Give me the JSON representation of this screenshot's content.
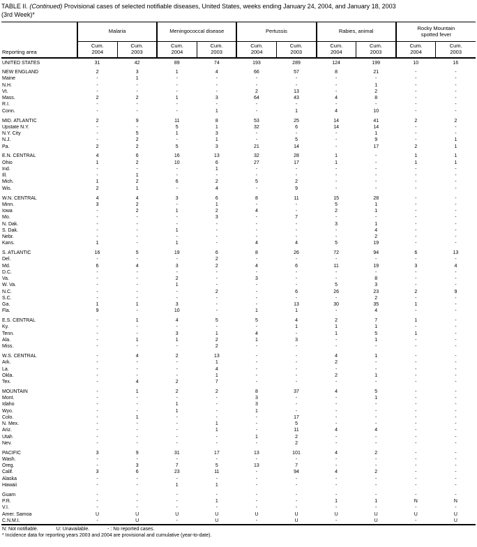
{
  "colors": {
    "text": "#000000",
    "background": "#ffffff",
    "rule": "#000000"
  },
  "title": {
    "prefix": "TABLE II. ",
    "continued": "(Continued)",
    "rest": " Provisional cases of selected notifiable diseases, United States, weeks ending January 24, 2004, and January 18, 2003",
    "line2": "(3rd Week)*"
  },
  "table": {
    "reporting_area_label": "Reporting area",
    "groups": [
      {
        "id": "malaria",
        "label": "Malaria"
      },
      {
        "id": "meningococcal-disease",
        "label": "Meningococcal disease"
      },
      {
        "id": "pertussis",
        "label": "Pertussis"
      },
      {
        "id": "rabies-animal",
        "label": "Rabies, animal"
      },
      {
        "id": "rocky-mountain-spotted-fever",
        "label": "Rocky Mountain spotted fever"
      }
    ],
    "sub_columns": [
      {
        "line1": "Cum.",
        "line2": "2004"
      },
      {
        "line1": "Cum.",
        "line2": "2003"
      },
      {
        "line1": "Cum.",
        "line2": "2004"
      },
      {
        "line1": "Cum.",
        "line2": "2003"
      },
      {
        "line1": "Cum.",
        "line2": "2004"
      },
      {
        "line1": "Cum.",
        "line2": "2003"
      },
      {
        "line1": "Cum.",
        "line2": "2004"
      },
      {
        "line1": "Cum.",
        "line2": "2003"
      },
      {
        "line1": "Cum.",
        "line2": "2004"
      },
      {
        "line1": "Cum.",
        "line2": "2003"
      }
    ],
    "rows": [
      {
        "label": "UNITED STATES",
        "type": "total",
        "gap": false,
        "values": [
          "31",
          "42",
          "89",
          "74",
          "193",
          "289",
          "124",
          "199",
          "10",
          "16"
        ]
      },
      {
        "label": "NEW ENGLAND",
        "type": "total",
        "gap": true,
        "values": [
          "2",
          "3",
          "1",
          "4",
          "66",
          "57",
          "8",
          "21",
          "-",
          "-"
        ]
      },
      {
        "label": "Maine",
        "type": "state",
        "gap": false,
        "values": [
          "-",
          "1",
          "-",
          "-",
          "-",
          "-",
          "-",
          "-",
          "-",
          "-"
        ]
      },
      {
        "label": "N.H.",
        "type": "state",
        "gap": false,
        "values": [
          "-",
          "-",
          "-",
          "-",
          "-",
          "-",
          "-",
          "1",
          "-",
          "-"
        ]
      },
      {
        "label": "Vt.",
        "type": "state",
        "gap": false,
        "values": [
          "-",
          "-",
          "-",
          "-",
          "2",
          "13",
          "-",
          "2",
          "-",
          "-"
        ]
      },
      {
        "label": "Mass.",
        "type": "state",
        "gap": false,
        "values": [
          "2",
          "2",
          "1",
          "3",
          "64",
          "43",
          "4",
          "8",
          "-",
          "-"
        ]
      },
      {
        "label": "R.I.",
        "type": "state",
        "gap": false,
        "values": [
          "-",
          "-",
          "-",
          "-",
          "-",
          "-",
          "-",
          "-",
          "-",
          "-"
        ]
      },
      {
        "label": "Conn.",
        "type": "state",
        "gap": false,
        "values": [
          "-",
          "-",
          "-",
          "1",
          "-",
          "1",
          "4",
          "10",
          "-",
          "-"
        ]
      },
      {
        "label": "MID. ATLANTIC",
        "type": "total",
        "gap": true,
        "values": [
          "2",
          "9",
          "11",
          "8",
          "53",
          "25",
          "14",
          "41",
          "2",
          "2"
        ]
      },
      {
        "label": "Upstate N.Y.",
        "type": "state",
        "gap": false,
        "values": [
          "-",
          "-",
          "5",
          "1",
          "32",
          "6",
          "14",
          "14",
          "-",
          "-"
        ]
      },
      {
        "label": "N.Y. City",
        "type": "state",
        "gap": false,
        "values": [
          "-",
          "5",
          "1",
          "3",
          "-",
          "-",
          "-",
          "1",
          "-",
          "-"
        ]
      },
      {
        "label": "N.J.",
        "type": "state",
        "gap": false,
        "values": [
          "-",
          "2",
          "-",
          "1",
          "-",
          "5",
          "-",
          "9",
          "-",
          "1"
        ]
      },
      {
        "label": "Pa.",
        "type": "state",
        "gap": false,
        "values": [
          "2",
          "2",
          "5",
          "3",
          "21",
          "14",
          "-",
          "17",
          "2",
          "1"
        ]
      },
      {
        "label": "E.N. CENTRAL",
        "type": "total",
        "gap": true,
        "values": [
          "4",
          "6",
          "16",
          "13",
          "32",
          "28",
          "1",
          "-",
          "1",
          "1"
        ]
      },
      {
        "label": "Ohio",
        "type": "state",
        "gap": false,
        "values": [
          "1",
          "2",
          "10",
          "6",
          "27",
          "17",
          "1",
          "-",
          "1",
          "1"
        ]
      },
      {
        "label": "Ind.",
        "type": "state",
        "gap": false,
        "values": [
          "-",
          "-",
          "-",
          "1",
          "-",
          "-",
          "-",
          "-",
          "-",
          "-"
        ]
      },
      {
        "label": "Ill.",
        "type": "state",
        "gap": false,
        "values": [
          "-",
          "1",
          "-",
          "-",
          "-",
          "-",
          "-",
          "-",
          "-",
          "-"
        ]
      },
      {
        "label": "Mich.",
        "type": "state",
        "gap": false,
        "values": [
          "1",
          "2",
          "6",
          "2",
          "5",
          "2",
          "-",
          "-",
          "-",
          "-"
        ]
      },
      {
        "label": "Wis.",
        "type": "state",
        "gap": false,
        "values": [
          "2",
          "1",
          "-",
          "4",
          "-",
          "9",
          "-",
          "-",
          "-",
          "-"
        ]
      },
      {
        "label": "W.N. CENTRAL",
        "type": "total",
        "gap": true,
        "values": [
          "4",
          "4",
          "3",
          "6",
          "8",
          "11",
          "15",
          "28",
          "-",
          "-"
        ]
      },
      {
        "label": "Minn.",
        "type": "state",
        "gap": false,
        "values": [
          "3",
          "2",
          "-",
          "1",
          "-",
          "-",
          "5",
          "1",
          "-",
          "-"
        ]
      },
      {
        "label": "Iowa",
        "type": "state",
        "gap": false,
        "values": [
          "-",
          "2",
          "1",
          "2",
          "4",
          "-",
          "2",
          "1",
          "-",
          "-"
        ]
      },
      {
        "label": "Mo.",
        "type": "state",
        "gap": false,
        "values": [
          "-",
          "-",
          "-",
          "3",
          "-",
          "7",
          "-",
          "-",
          "-",
          "-"
        ]
      },
      {
        "label": "N. Dak.",
        "type": "state",
        "gap": false,
        "values": [
          "-",
          "-",
          "-",
          "-",
          "-",
          "-",
          "3",
          "1",
          "-",
          "-"
        ]
      },
      {
        "label": "S. Dak.",
        "type": "state",
        "gap": false,
        "values": [
          "-",
          "-",
          "1",
          "-",
          "-",
          "-",
          "-",
          "4",
          "-",
          "-"
        ]
      },
      {
        "label": "Nebr.",
        "type": "state",
        "gap": false,
        "values": [
          "-",
          "-",
          "-",
          "-",
          "-",
          "-",
          "-",
          "2",
          "-",
          "-"
        ]
      },
      {
        "label": "Kans.",
        "type": "state",
        "gap": false,
        "values": [
          "1",
          "-",
          "1",
          "-",
          "4",
          "4",
          "5",
          "19",
          "-",
          "-"
        ]
      },
      {
        "label": "S. ATLANTIC",
        "type": "total",
        "gap": true,
        "values": [
          "16",
          "5",
          "19",
          "6",
          "8",
          "26",
          "72",
          "94",
          "6",
          "13"
        ]
      },
      {
        "label": "Del.",
        "type": "state",
        "gap": false,
        "values": [
          "-",
          "-",
          "-",
          "2",
          "-",
          "-",
          "-",
          "-",
          "-",
          "-"
        ]
      },
      {
        "label": "Md.",
        "type": "state",
        "gap": false,
        "values": [
          "6",
          "4",
          "3",
          "2",
          "4",
          "6",
          "11",
          "19",
          "3",
          "4"
        ]
      },
      {
        "label": "D.C.",
        "type": "state",
        "gap": false,
        "values": [
          "-",
          "-",
          "-",
          "-",
          "-",
          "-",
          "-",
          "-",
          "-",
          "-"
        ]
      },
      {
        "label": "Va.",
        "type": "state",
        "gap": false,
        "values": [
          "-",
          "-",
          "2",
          "-",
          "3",
          "-",
          "-",
          "8",
          "-",
          "-"
        ]
      },
      {
        "label": "W. Va.",
        "type": "state",
        "gap": false,
        "values": [
          "-",
          "-",
          "1",
          "-",
          "-",
          "-",
          "5",
          "3",
          "-",
          "-"
        ]
      },
      {
        "label": "N.C.",
        "type": "state",
        "gap": false,
        "values": [
          "-",
          "-",
          "-",
          "2",
          "-",
          "6",
          "26",
          "23",
          "2",
          "9"
        ]
      },
      {
        "label": "S.C.",
        "type": "state",
        "gap": false,
        "values": [
          "-",
          "-",
          "-",
          "-",
          "-",
          "-",
          "-",
          "2",
          "-",
          "-"
        ]
      },
      {
        "label": "Ga.",
        "type": "state",
        "gap": false,
        "values": [
          "1",
          "1",
          "3",
          "-",
          "-",
          "13",
          "30",
          "35",
          "1",
          "-"
        ]
      },
      {
        "label": "Fla.",
        "type": "state",
        "gap": false,
        "values": [
          "9",
          "-",
          "10",
          "-",
          "1",
          "1",
          "-",
          "4",
          "-",
          "-"
        ]
      },
      {
        "label": "E.S. CENTRAL",
        "type": "total",
        "gap": true,
        "values": [
          "-",
          "1",
          "4",
          "5",
          "5",
          "4",
          "2",
          "7",
          "1",
          "-"
        ]
      },
      {
        "label": "Ky.",
        "type": "state",
        "gap": false,
        "values": [
          "-",
          "-",
          "-",
          "-",
          "-",
          "1",
          "1",
          "1",
          "-",
          "-"
        ]
      },
      {
        "label": "Tenn.",
        "type": "state",
        "gap": false,
        "values": [
          "-",
          "-",
          "3",
          "1",
          "4",
          "-",
          "1",
          "5",
          "1",
          "-"
        ]
      },
      {
        "label": "Ala.",
        "type": "state",
        "gap": false,
        "values": [
          "-",
          "1",
          "1",
          "2",
          "1",
          "3",
          "-",
          "1",
          "-",
          "-"
        ]
      },
      {
        "label": "Miss.",
        "type": "state",
        "gap": false,
        "values": [
          "-",
          "-",
          "-",
          "2",
          "-",
          "-",
          "-",
          "-",
          "-",
          "-"
        ]
      },
      {
        "label": "W.S. CENTRAL",
        "type": "total",
        "gap": true,
        "values": [
          "-",
          "4",
          "2",
          "13",
          "-",
          "-",
          "4",
          "1",
          "-",
          "-"
        ]
      },
      {
        "label": "Ark.",
        "type": "state",
        "gap": false,
        "values": [
          "-",
          "-",
          "-",
          "1",
          "-",
          "-",
          "2",
          "-",
          "-",
          "-"
        ]
      },
      {
        "label": "La.",
        "type": "state",
        "gap": false,
        "values": [
          "-",
          "-",
          "-",
          "4",
          "-",
          "-",
          "-",
          "-",
          "-",
          "-"
        ]
      },
      {
        "label": "Okla.",
        "type": "state",
        "gap": false,
        "values": [
          "-",
          "-",
          "-",
          "1",
          "-",
          "-",
          "2",
          "1",
          "-",
          "-"
        ]
      },
      {
        "label": "Tex.",
        "type": "state",
        "gap": false,
        "values": [
          "-",
          "4",
          "2",
          "7",
          "-",
          "-",
          "-",
          "-",
          "-",
          "-"
        ]
      },
      {
        "label": "MOUNTAIN",
        "type": "total",
        "gap": true,
        "values": [
          "-",
          "1",
          "2",
          "2",
          "8",
          "37",
          "4",
          "5",
          "-",
          "-"
        ]
      },
      {
        "label": "Mont.",
        "type": "state",
        "gap": false,
        "values": [
          "-",
          "-",
          "-",
          "-",
          "3",
          "-",
          "-",
          "1",
          "-",
          "-"
        ]
      },
      {
        "label": "Idaho",
        "type": "state",
        "gap": false,
        "values": [
          "-",
          "-",
          "1",
          "-",
          "3",
          "-",
          "-",
          "-",
          "-",
          "-"
        ]
      },
      {
        "label": "Wyo.",
        "type": "state",
        "gap": false,
        "values": [
          "-",
          "-",
          "1",
          "-",
          "1",
          "-",
          "-",
          "-",
          "-",
          "-"
        ]
      },
      {
        "label": "Colo.",
        "type": "state",
        "gap": false,
        "values": [
          "-",
          "1",
          "-",
          "-",
          "-",
          "17",
          "-",
          "-",
          "-",
          "-"
        ]
      },
      {
        "label": "N. Mex.",
        "type": "state",
        "gap": false,
        "values": [
          "-",
          "-",
          "-",
          "1",
          "-",
          "5",
          "-",
          "-",
          "-",
          "-"
        ]
      },
      {
        "label": "Ariz.",
        "type": "state",
        "gap": false,
        "values": [
          "-",
          "-",
          "-",
          "1",
          "-",
          "11",
          "4",
          "4",
          "-",
          "-"
        ]
      },
      {
        "label": "Utah",
        "type": "state",
        "gap": false,
        "values": [
          "-",
          "-",
          "-",
          "-",
          "1",
          "2",
          "-",
          "-",
          "-",
          "-"
        ]
      },
      {
        "label": "Nev.",
        "type": "state",
        "gap": false,
        "values": [
          "-",
          "-",
          "-",
          "-",
          "-",
          "2",
          "-",
          "-",
          "-",
          "-"
        ]
      },
      {
        "label": "PACIFIC",
        "type": "total",
        "gap": true,
        "values": [
          "3",
          "9",
          "31",
          "17",
          "13",
          "101",
          "4",
          "2",
          "-",
          "-"
        ]
      },
      {
        "label": "Wash.",
        "type": "state",
        "gap": false,
        "values": [
          "-",
          "-",
          "-",
          "-",
          "-",
          "-",
          "-",
          "-",
          "-",
          "-"
        ]
      },
      {
        "label": "Oreg.",
        "type": "state",
        "gap": false,
        "values": [
          "-",
          "3",
          "7",
          "5",
          "13",
          "7",
          "-",
          "-",
          "-",
          "-"
        ]
      },
      {
        "label": "Calif.",
        "type": "state",
        "gap": false,
        "values": [
          "3",
          "6",
          "23",
          "11",
          "-",
          "94",
          "4",
          "2",
          "-",
          "-"
        ]
      },
      {
        "label": "Alaska",
        "type": "state",
        "gap": false,
        "values": [
          "-",
          "-",
          "-",
          "-",
          "-",
          "-",
          "-",
          "-",
          "-",
          "-"
        ]
      },
      {
        "label": "Hawaii",
        "type": "state",
        "gap": false,
        "values": [
          "-",
          "-",
          "1",
          "1",
          "-",
          "-",
          "-",
          "-",
          "-",
          "-"
        ]
      },
      {
        "label": "Guam",
        "type": "state",
        "gap": true,
        "values": [
          "-",
          "-",
          "-",
          "-",
          "-",
          "-",
          "-",
          "-",
          "-",
          "-"
        ]
      },
      {
        "label": "P.R.",
        "type": "state",
        "gap": false,
        "values": [
          "-",
          "-",
          "-",
          "1",
          "-",
          "-",
          "1",
          "1",
          "N",
          "N"
        ]
      },
      {
        "label": "V.I.",
        "type": "state",
        "gap": false,
        "values": [
          "-",
          "-",
          "-",
          "-",
          "-",
          "-",
          "-",
          "-",
          "-",
          "-"
        ]
      },
      {
        "label": "Amer. Samoa",
        "type": "state",
        "gap": false,
        "values": [
          "U",
          "U",
          "U",
          "U",
          "U",
          "U",
          "U",
          "U",
          "U",
          "U"
        ]
      },
      {
        "label": "C.N.M.I.",
        "type": "state",
        "gap": false,
        "values": [
          "-",
          "U",
          "-",
          "U",
          "-",
          "U",
          "-",
          "U",
          "-",
          "U"
        ]
      }
    ]
  },
  "footnotes": {
    "legend": [
      "N: Not notifiable.",
      "U: Unavailable.",
      "- : No reported cases."
    ],
    "incidence_note": "* Incidence data for reporting years 2003 and 2004 are provisional and cumulative (year-to-date)."
  }
}
